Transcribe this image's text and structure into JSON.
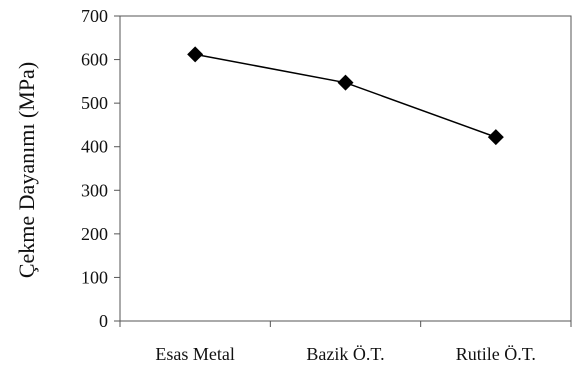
{
  "chart_data": {
    "type": "line",
    "title": "",
    "xlabel": "",
    "ylabel": "Çekme Dayanımı (MPa)",
    "categories": [
      "Esas Metal",
      "Bazik Ö.T.",
      "Rutile Ö.T."
    ],
    "series": [
      {
        "values": [
          612,
          547,
          422
        ],
        "color": "#000000",
        "marker": "diamond"
      }
    ],
    "ylim": [
      0,
      700
    ],
    "yticks": [
      "0",
      "100",
      "200",
      "300",
      "400",
      "500",
      "600",
      "700"
    ],
    "grid": false,
    "legend": "none"
  }
}
